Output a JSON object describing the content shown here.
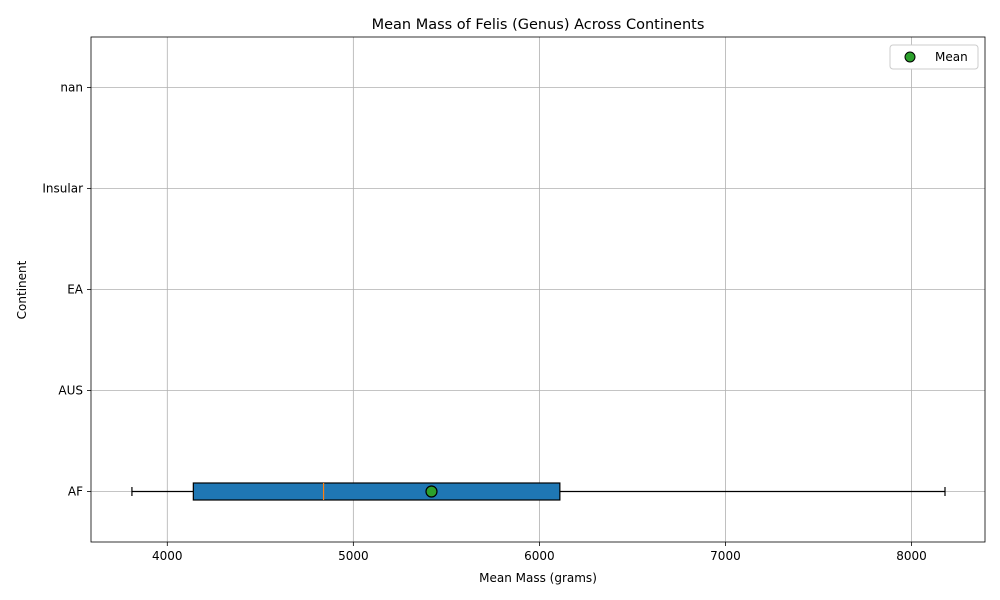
{
  "chart_data": {
    "type": "boxplot",
    "orientation": "horizontal",
    "title": "Mean Mass of Felis (Genus) Across Continents",
    "xlabel": "Mean Mass (grams)",
    "ylabel": "Continent",
    "categories": [
      "AF",
      "AUS",
      "EA",
      "Insular",
      "nan"
    ],
    "xlim": [
      3590,
      8395
    ],
    "xticks": [
      4000,
      5000,
      6000,
      7000,
      8000
    ],
    "grid": true,
    "legend": {
      "position": "top-right",
      "entries": [
        "Mean"
      ]
    },
    "boxes": [
      {
        "category": "AF",
        "whisker_low": 3810,
        "q1": 4140,
        "median": 4840,
        "q3": 6110,
        "whisker_high": 8180,
        "mean": 5420
      }
    ],
    "colors": {
      "box_fill": "#1f77b4",
      "median_line": "#ff7f0e",
      "mean_marker": "#2ca02c",
      "grid": "#b0b0b0"
    }
  }
}
